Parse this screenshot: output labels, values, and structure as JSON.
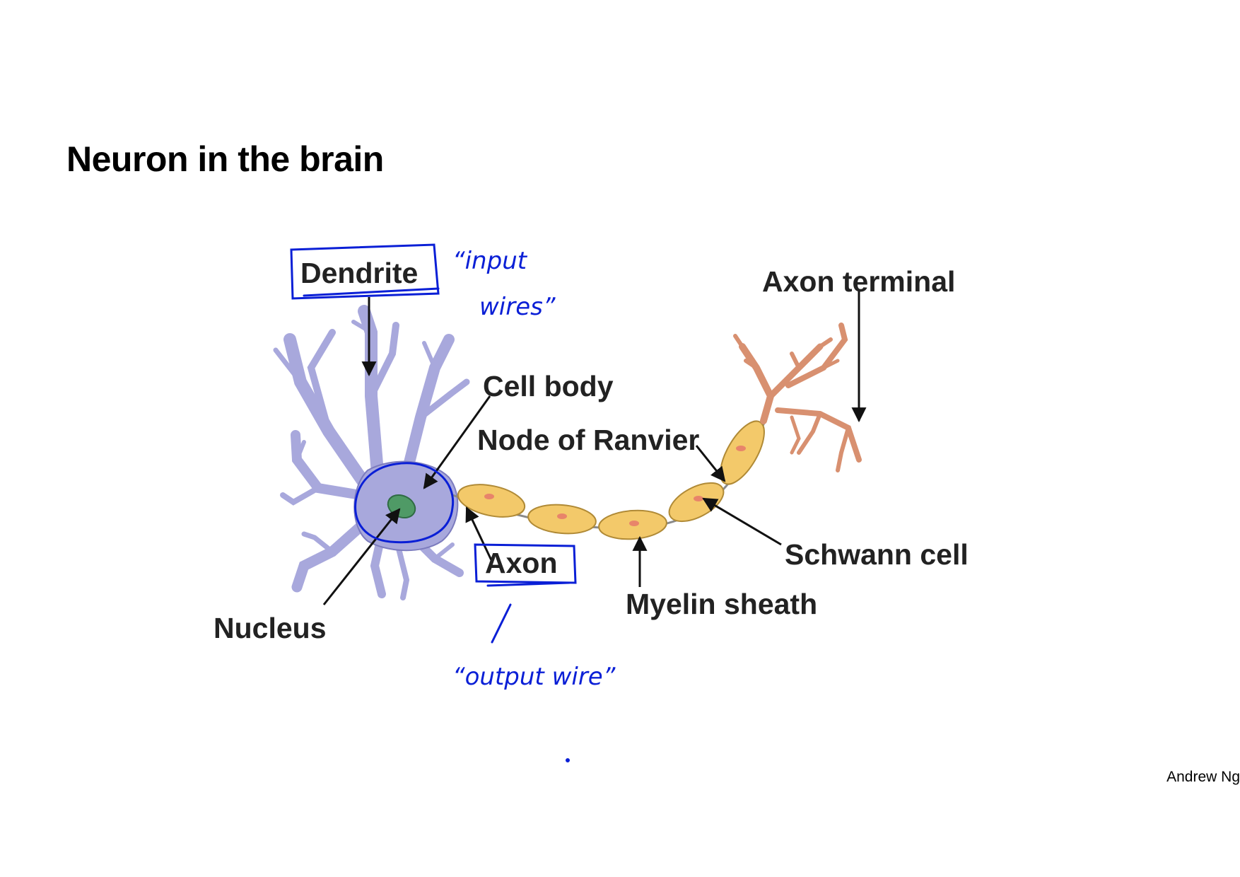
{
  "slide": {
    "title": "Neuron in the brain",
    "author": "Andrew Ng"
  },
  "diagram": {
    "labels": {
      "dendrite": "Dendrite",
      "axon_terminal": "Axon terminal",
      "cell_body": "Cell body",
      "node_of_ranvier": "Node of Ranvier",
      "axon": "Axon",
      "schwann_cell": "Schwann cell",
      "myelin_sheath": "Myelin sheath",
      "nucleus": "Nucleus"
    },
    "annotations": {
      "input_line1": "“input",
      "input_line2": "wires”",
      "output": "“output wire”"
    }
  },
  "colors": {
    "cell": "#a8a8dc",
    "cell_stroke": "#7c7cbe",
    "nucleus": "#4f9a66",
    "myelin": "#f3c96a",
    "myelin_stroke": "#b08a36",
    "terminal": "#d89070",
    "ink": "#0a1fd6"
  }
}
